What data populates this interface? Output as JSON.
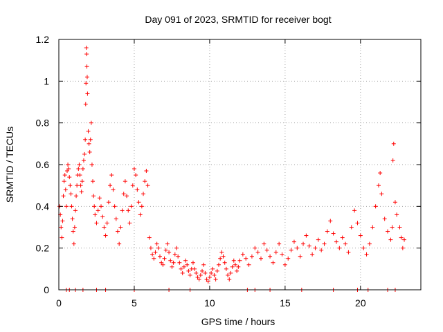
{
  "chart_data": {
    "type": "scatter",
    "title": "Day 091 of 2023, SRMTID for receiver bogt",
    "xlabel": "GPS time / hours",
    "ylabel": "SRMTID / TECUs",
    "xlim": [
      0,
      24
    ],
    "ylim": [
      0,
      1.2
    ],
    "xticks": [
      0,
      5,
      10,
      15,
      20
    ],
    "xtick_labels": [
      "0",
      "5",
      "10",
      "15",
      "20"
    ],
    "yticks": [
      0,
      0.2,
      0.4,
      0.6,
      0.8,
      1.0,
      1.2
    ],
    "ytick_labels": [
      "0",
      "0.2",
      "0.4",
      "0.6",
      "0.8",
      "1",
      "1.2"
    ],
    "grid": true,
    "marker": "+",
    "series": [
      {
        "name": "SRMTID",
        "color": "#ff0000",
        "points": [
          [
            0.05,
            0.4
          ],
          [
            0.1,
            0.36
          ],
          [
            0.15,
            0.3
          ],
          [
            0.2,
            0.25
          ],
          [
            0.25,
            0.33
          ],
          [
            0.3,
            0.45
          ],
          [
            0.35,
            0.52
          ],
          [
            0.4,
            0.55
          ],
          [
            0.45,
            0.48
          ],
          [
            0.5,
            0.4
          ],
          [
            0.55,
            0.57
          ],
          [
            0.6,
            0.6
          ],
          [
            0.65,
            0.58
          ],
          [
            0.7,
            0.54
          ],
          [
            0.75,
            0.5
          ],
          [
            0.8,
            0.46
          ],
          [
            0.85,
            0.4
          ],
          [
            0.9,
            0.34
          ],
          [
            0.95,
            0.28
          ],
          [
            1.0,
            0.22
          ],
          [
            1.05,
            0.3
          ],
          [
            1.1,
            0.38
          ],
          [
            1.15,
            0.45
          ],
          [
            1.2,
            0.5
          ],
          [
            1.25,
            0.55
          ],
          [
            1.3,
            0.58
          ],
          [
            1.35,
            0.6
          ],
          [
            1.4,
            0.55
          ],
          [
            1.45,
            0.5
          ],
          [
            1.5,
            0.47
          ],
          [
            1.55,
            0.52
          ],
          [
            1.6,
            0.58
          ],
          [
            1.65,
            0.62
          ],
          [
            1.7,
            0.65
          ],
          [
            1.75,
            0.72
          ],
          [
            1.78,
            0.89
          ],
          [
            1.8,
            0.99
          ],
          [
            1.82,
            1.16
          ],
          [
            1.84,
            1.13
          ],
          [
            1.86,
            1.07
          ],
          [
            1.88,
            1.02
          ],
          [
            1.9,
            0.94
          ],
          [
            1.95,
            0.76
          ],
          [
            2.0,
            0.7
          ],
          [
            2.05,
            0.66
          ],
          [
            2.1,
            0.72
          ],
          [
            2.15,
            0.8
          ],
          [
            2.2,
            0.6
          ],
          [
            2.25,
            0.52
          ],
          [
            2.3,
            0.45
          ],
          [
            2.35,
            0.4
          ],
          [
            2.4,
            0.36
          ],
          [
            2.5,
            0.32
          ],
          [
            2.6,
            0.38
          ],
          [
            2.7,
            0.44
          ],
          [
            2.8,
            0.4
          ],
          [
            2.9,
            0.35
          ],
          [
            3.0,
            0.3
          ],
          [
            3.1,
            0.26
          ],
          [
            3.2,
            0.32
          ],
          [
            3.3,
            0.42
          ],
          [
            3.4,
            0.5
          ],
          [
            3.5,
            0.55
          ],
          [
            3.6,
            0.48
          ],
          [
            3.7,
            0.4
          ],
          [
            3.8,
            0.34
          ],
          [
            3.9,
            0.28
          ],
          [
            4.0,
            0.22
          ],
          [
            4.1,
            0.3
          ],
          [
            4.2,
            0.38
          ],
          [
            4.3,
            0.46
          ],
          [
            4.4,
            0.52
          ],
          [
            4.5,
            0.45
          ],
          [
            4.6,
            0.38
          ],
          [
            4.7,
            0.32
          ],
          [
            4.8,
            0.4
          ],
          [
            4.9,
            0.5
          ],
          [
            5.0,
            0.58
          ],
          [
            5.1,
            0.55
          ],
          [
            5.2,
            0.48
          ],
          [
            5.3,
            0.42
          ],
          [
            5.4,
            0.36
          ],
          [
            5.5,
            0.4
          ],
          [
            5.6,
            0.46
          ],
          [
            5.7,
            0.52
          ],
          [
            5.8,
            0.57
          ],
          [
            5.9,
            0.5
          ],
          [
            6.0,
            0.25
          ],
          [
            6.1,
            0.2
          ],
          [
            6.2,
            0.17
          ],
          [
            6.3,
            0.15
          ],
          [
            6.4,
            0.18
          ],
          [
            6.5,
            0.22
          ],
          [
            6.6,
            0.2
          ],
          [
            6.7,
            0.16
          ],
          [
            6.8,
            0.13
          ],
          [
            6.9,
            0.12
          ],
          [
            7.0,
            0.15
          ],
          [
            7.1,
            0.19
          ],
          [
            7.2,
            0.22
          ],
          [
            7.3,
            0.18
          ],
          [
            7.4,
            0.14
          ],
          [
            7.5,
            0.11
          ],
          [
            7.6,
            0.13
          ],
          [
            7.7,
            0.17
          ],
          [
            7.8,
            0.2
          ],
          [
            7.9,
            0.16
          ],
          [
            8.0,
            0.13
          ],
          [
            8.1,
            0.1
          ],
          [
            8.2,
            0.08
          ],
          [
            8.3,
            0.11
          ],
          [
            8.4,
            0.14
          ],
          [
            8.5,
            0.12
          ],
          [
            8.6,
            0.09
          ],
          [
            8.7,
            0.07
          ],
          [
            8.8,
            0.1
          ],
          [
            8.9,
            0.13
          ],
          [
            9.0,
            0.1
          ],
          [
            9.1,
            0.08
          ],
          [
            9.2,
            0.06
          ],
          [
            9.3,
            0.05
          ],
          [
            9.4,
            0.07
          ],
          [
            9.5,
            0.09
          ],
          [
            9.6,
            0.12
          ],
          [
            9.7,
            0.08
          ],
          [
            9.8,
            0.05
          ],
          [
            9.9,
            0.04
          ],
          [
            10.0,
            0.06
          ],
          [
            10.1,
            0.08
          ],
          [
            10.2,
            0.1
          ],
          [
            10.3,
            0.07
          ],
          [
            10.4,
            0.05
          ],
          [
            10.5,
            0.09
          ],
          [
            10.6,
            0.12
          ],
          [
            10.7,
            0.15
          ],
          [
            10.8,
            0.18
          ],
          [
            10.9,
            0.16
          ],
          [
            11.0,
            0.13
          ],
          [
            11.1,
            0.1
          ],
          [
            11.2,
            0.07
          ],
          [
            11.3,
            0.05
          ],
          [
            11.4,
            0.08
          ],
          [
            11.5,
            0.11
          ],
          [
            11.6,
            0.14
          ],
          [
            11.7,
            0.12
          ],
          [
            11.8,
            0.09
          ],
          [
            11.9,
            0.11
          ],
          [
            12.0,
            0.14
          ],
          [
            12.2,
            0.17
          ],
          [
            12.4,
            0.15
          ],
          [
            12.6,
            0.12
          ],
          [
            12.8,
            0.16
          ],
          [
            13.0,
            0.2
          ],
          [
            13.2,
            0.18
          ],
          [
            13.4,
            0.15
          ],
          [
            13.6,
            0.22
          ],
          [
            13.8,
            0.19
          ],
          [
            14.0,
            0.16
          ],
          [
            14.2,
            0.13
          ],
          [
            14.4,
            0.18
          ],
          [
            14.6,
            0.22
          ],
          [
            14.8,
            0.17
          ],
          [
            15.0,
            0.12
          ],
          [
            15.2,
            0.15
          ],
          [
            15.4,
            0.19
          ],
          [
            15.6,
            0.23
          ],
          [
            15.8,
            0.2
          ],
          [
            16.0,
            0.16
          ],
          [
            16.2,
            0.22
          ],
          [
            16.4,
            0.26
          ],
          [
            16.6,
            0.21
          ],
          [
            16.8,
            0.17
          ],
          [
            17.0,
            0.2
          ],
          [
            17.2,
            0.24
          ],
          [
            17.4,
            0.19
          ],
          [
            17.6,
            0.22
          ],
          [
            17.8,
            0.28
          ],
          [
            18.0,
            0.33
          ],
          [
            18.2,
            0.27
          ],
          [
            18.4,
            0.23
          ],
          [
            18.6,
            0.2
          ],
          [
            18.8,
            0.25
          ],
          [
            19.0,
            0.22
          ],
          [
            19.2,
            0.18
          ],
          [
            19.4,
            0.3
          ],
          [
            19.6,
            0.38
          ],
          [
            19.8,
            0.32
          ],
          [
            20.0,
            0.26
          ],
          [
            20.2,
            0.2
          ],
          [
            20.4,
            0.17
          ],
          [
            20.6,
            0.22
          ],
          [
            20.8,
            0.3
          ],
          [
            21.0,
            0.4
          ],
          [
            21.2,
            0.5
          ],
          [
            21.3,
            0.56
          ],
          [
            21.4,
            0.46
          ],
          [
            21.6,
            0.34
          ],
          [
            21.8,
            0.28
          ],
          [
            22.0,
            0.24
          ],
          [
            22.1,
            0.3
          ],
          [
            22.15,
            0.62
          ],
          [
            22.2,
            0.7
          ],
          [
            22.3,
            0.42
          ],
          [
            22.4,
            0.36
          ],
          [
            22.6,
            0.3
          ],
          [
            22.7,
            0.25
          ],
          [
            22.8,
            0.2
          ],
          [
            22.9,
            0.24
          ]
        ],
        "zero_points": [
          0.5,
          0.7,
          1.1,
          1.6,
          2.5,
          3.1,
          5.0,
          7.3,
          8.7,
          12.5,
          13.0,
          14.0,
          16.1,
          18.2,
          19.8,
          20.5,
          21.8,
          22.3
        ]
      }
    ]
  }
}
